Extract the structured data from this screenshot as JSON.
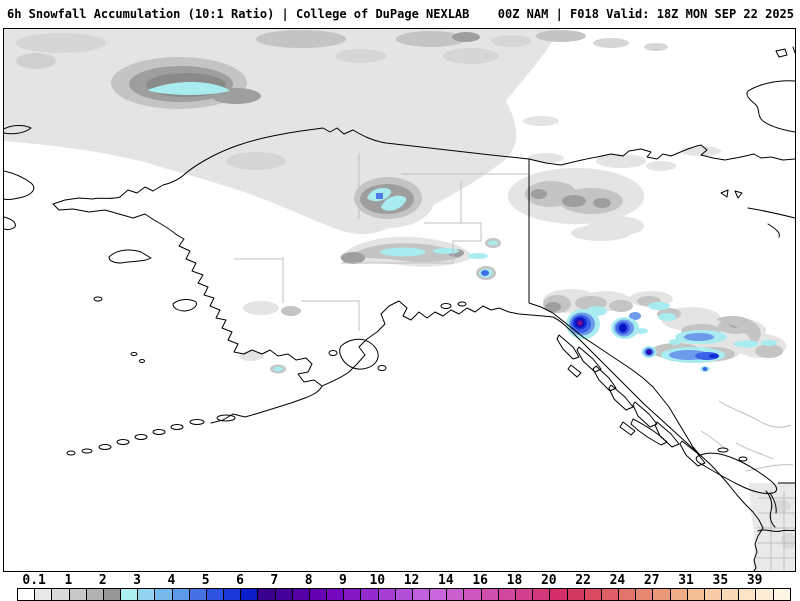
{
  "header": {
    "title_left": "6h Snowfall Accumulation (10:1 Ratio) | College of DuPage NEXLAB",
    "title_right": "00Z NAM | F018 Valid: 18Z MON SEP 22 2025"
  },
  "colorbar": {
    "tick_labels": [
      "0.1",
      "1",
      "2",
      "3",
      "4",
      "5",
      "6",
      "7",
      "8",
      "9",
      "10",
      "12",
      "14",
      "16",
      "18",
      "20",
      "22",
      "24",
      "27",
      "31",
      "35",
      "39"
    ],
    "segment_colors": [
      "#FFFFFF",
      "#E8E8E8",
      "#DADADA",
      "#C8C8C8",
      "#B2B2B2",
      "#989898",
      "#AEEFEF",
      "#93D4F0",
      "#77B8EC",
      "#5C9AE8",
      "#4472E4",
      "#2D53E0",
      "#1C38D6",
      "#0A1ECC",
      "#38008C",
      "#46009A",
      "#5500A6",
      "#6500B2",
      "#7507BD",
      "#8519C5",
      "#962BCD",
      "#A73ED3",
      "#B450D8",
      "#C160DC",
      "#C966DB",
      "#CB5FCE",
      "#CD57BE",
      "#CE4FAE",
      "#D0479D",
      "#D13F8D",
      "#D3377C",
      "#D52F6B",
      "#D63A60",
      "#DA4A62",
      "#DE5F66",
      "#E2746B",
      "#E68872",
      "#EA9A7B",
      "#EFAC86",
      "#F3BD95",
      "#F6CBA5",
      "#F9D8B6",
      "#FBE3C6",
      "#FDEDD6",
      "#FEF5E5"
    ],
    "border_color": "#000000"
  },
  "map": {
    "palette": {
      "light_gray": "#E4E4E4",
      "light_gray2": "#D6D6D6",
      "medium_gray": "#C4C4C4",
      "dark_gray": "#9E9E9E",
      "darker_gray": "#777777",
      "pale_cyan": "#A8ECF0",
      "cornflower_blue": "#6E9AEC",
      "royal_blue": "#3B62E6",
      "deep_blue": "#1430D8",
      "navy": "#0714BE",
      "indigo": "#4606A8",
      "magenta_core": "#8C1888",
      "coastline": "#000000",
      "admin_lines": "#BFBFBF"
    }
  }
}
